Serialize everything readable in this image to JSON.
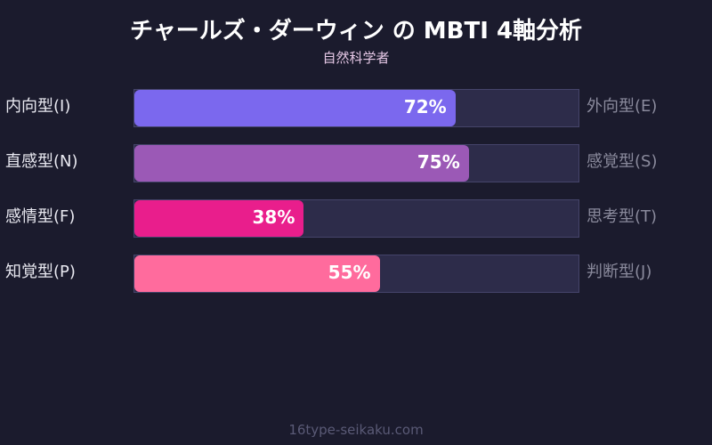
{
  "header": {
    "title": "チャールズ・ダーウィン の MBTI 4軸分析",
    "subtitle": "自然科学者"
  },
  "axes": [
    {
      "left_label": "内向型(I)",
      "right_label": "外向型(E)",
      "value": 72,
      "value_label": "72%",
      "color": "#7b68ee"
    },
    {
      "left_label": "直感型(N)",
      "right_label": "感覚型(S)",
      "value": 75,
      "value_label": "75%",
      "color": "#9b59b6"
    },
    {
      "left_label": "感情型(F)",
      "right_label": "思考型(T)",
      "value": 38,
      "value_label": "38%",
      "color": "#e91e8c"
    },
    {
      "left_label": "知覚型(P)",
      "right_label": "判断型(J)",
      "value": 55,
      "value_label": "55%",
      "color": "#ff6b9d"
    }
  ],
  "footer": {
    "text": "16type-seikaku.com"
  },
  "colors": {
    "background": "#1b1b2d",
    "track": "#2d2c4a",
    "track_border": "#45446a"
  },
  "chart_data": {
    "type": "bar",
    "orientation": "horizontal",
    "title": "チャールズ・ダーウィン の MBTI 4軸分析",
    "subtitle": "自然科学者",
    "categories": [
      "内向型(I) / 外向型(E)",
      "直感型(N) / 感覚型(S)",
      "感情型(F) / 思考型(T)",
      "知覚型(P) / 判断型(J)"
    ],
    "left_labels": [
      "内向型(I)",
      "直感型(N)",
      "感情型(F)",
      "知覚型(P)"
    ],
    "right_labels": [
      "外向型(E)",
      "感覚型(S)",
      "思考型(T)",
      "判断型(J)"
    ],
    "values": [
      72,
      75,
      38,
      55
    ],
    "value_labels": [
      "72%",
      "75%",
      "38%",
      "55%"
    ],
    "colors": [
      "#7b68ee",
      "#9b59b6",
      "#e91e8c",
      "#ff6b9d"
    ],
    "xlim": [
      0,
      100
    ],
    "xlabel": "",
    "ylabel": "",
    "grid": false,
    "legend": "none",
    "annotation": "16type-seikaku.com"
  }
}
